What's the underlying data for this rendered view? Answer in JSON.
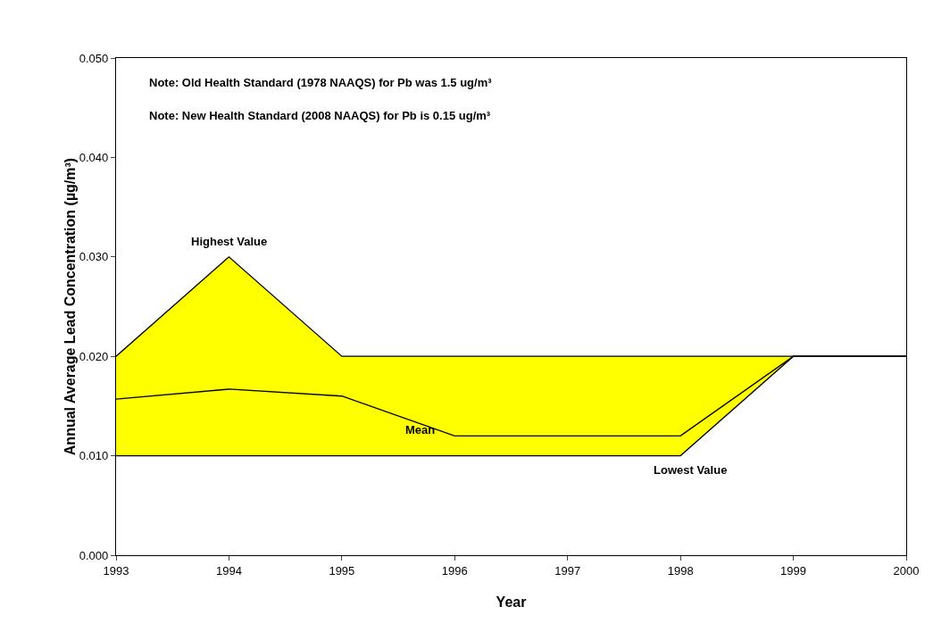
{
  "chart_data": {
    "type": "line",
    "xlabel": "Year",
    "ylabel": "Annual Average Lead Concentration (µg/m³)",
    "x": [
      1993,
      1994,
      1995,
      1996,
      1998,
      1999,
      2000
    ],
    "series": [
      {
        "type": "line",
        "color": "#000000",
        "values": [
          0.01,
          0.01,
          0.01,
          0.01,
          0.01,
          0.02,
          0.02
        ]
      },
      {
        "type": "area",
        "color": "#ffff00",
        "values": [
          0.02,
          0.03,
          0.02,
          0.02,
          0.02,
          0.02,
          0.02
        ]
      },
      {
        "type": "line",
        "color": "#000000",
        "values": [
          0.0157,
          0.0167,
          0.016,
          0.012,
          0.012,
          0.02,
          0.02
        ]
      }
    ],
    "xlim": [
      1993,
      2000
    ],
    "xticks": [
      1993,
      1994,
      1995,
      1996,
      1997,
      1998,
      1999,
      2000
    ],
    "ylim": [
      0,
      0.05
    ],
    "yticks": [
      {
        "value": 0,
        "label": "0.000"
      },
      {
        "value": 0.01,
        "label": "0.010"
      },
      {
        "value": 0.02,
        "label": "0.020"
      },
      {
        "value": 0.03,
        "label": "0.030"
      },
      {
        "value": 0.04,
        "label": "0.040"
      },
      {
        "value": 0.05,
        "label": "0.050"
      }
    ],
    "grid": false,
    "marker": "none",
    "line_style": "solid",
    "annotations": [
      "Note: Old Health Standard (1978 NAAQS) for Pb was 1.5 ug/m³",
      "Note: New Health Standard (2008 NAAQS) for Pb is 0.15 ug/m³",
      {
        "text": "Highest Value",
        "x": 1994,
        "y": 0.03
      },
      {
        "text": "Mean",
        "x": 1995.5,
        "y": 0.014
      },
      {
        "text": "Lowest Value",
        "x": 1997.7,
        "y": 0.01
      }
    ]
  }
}
